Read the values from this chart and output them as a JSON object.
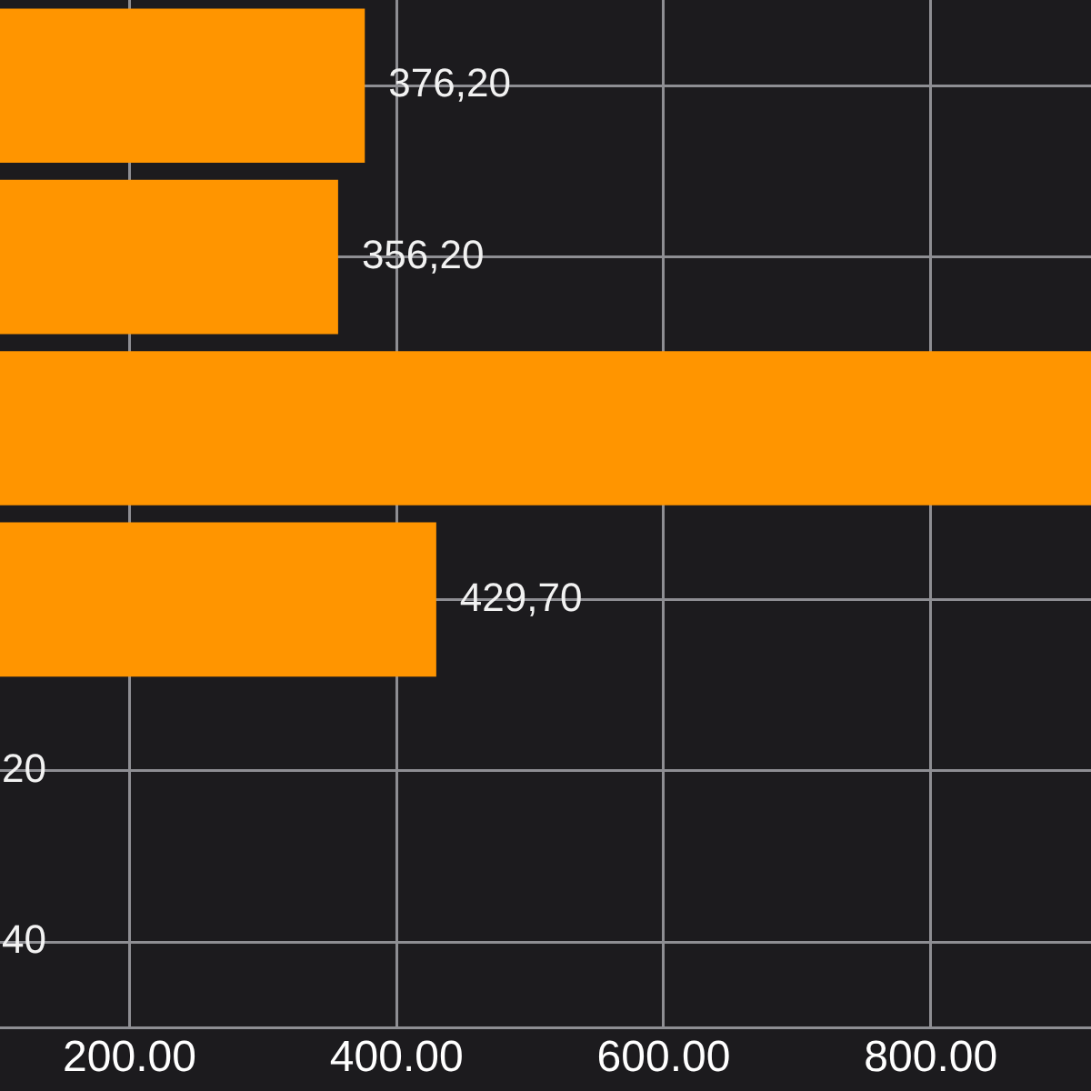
{
  "chart_data": {
    "type": "bar",
    "orientation": "horizontal",
    "categories": [
      null,
      null,
      null,
      null,
      null,
      null
    ],
    "values": [
      376.2,
      356.2,
      920,
      429.7,
      null,
      null
    ],
    "value_labels": [
      "376,20",
      "356,20",
      null,
      "429,70",
      "20",
      "40"
    ],
    "color": "#ff9500",
    "xlim": [
      103,
      920
    ],
    "xticks": [
      {
        "value": 200,
        "label": "200.00"
      },
      {
        "value": 400,
        "label": "400.00"
      },
      {
        "value": 600,
        "label": "600.00"
      },
      {
        "value": 800,
        "label": "800.00"
      }
    ],
    "grid": true,
    "legend": false,
    "tick_labels": "x"
  }
}
